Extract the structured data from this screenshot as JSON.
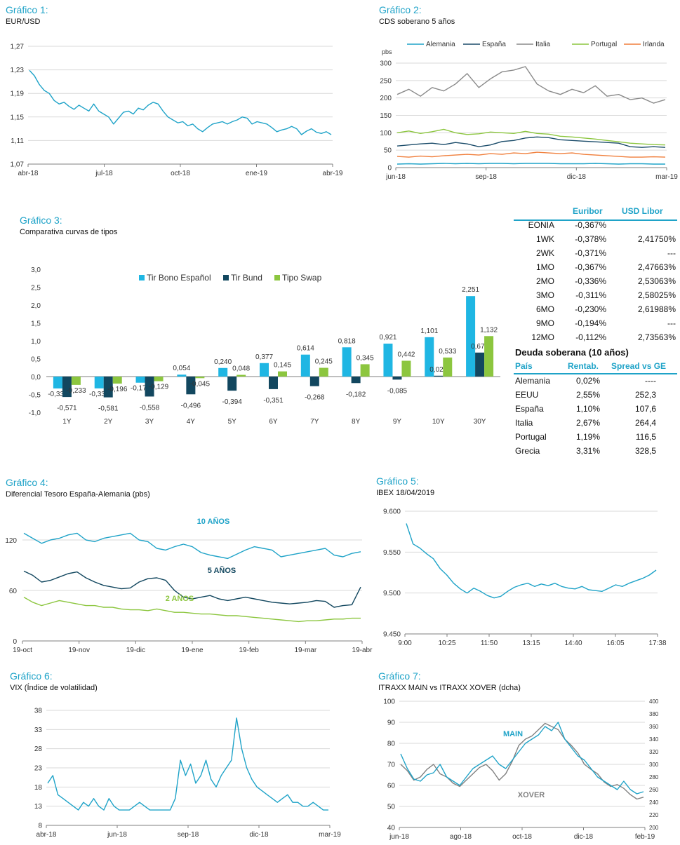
{
  "g1": {
    "title": "Gráfico 1:",
    "subtitle": "EUR/USD",
    "chart_data": {
      "type": "line",
      "yticks": [
        "1,27",
        "1,23",
        "1,19",
        "1,15",
        "1,11",
        "1,07"
      ],
      "xticks": [
        "abr-18",
        "jul-18",
        "oct-18",
        "ene-19",
        "abr-19"
      ],
      "ylim": [
        1.07,
        1.27
      ],
      "series": [
        {
          "color": "#1fa3c8",
          "values": [
            1.229,
            1.22,
            1.205,
            1.195,
            1.19,
            1.178,
            1.172,
            1.175,
            1.168,
            1.163,
            1.17,
            1.165,
            1.16,
            1.172,
            1.16,
            1.155,
            1.15,
            1.138,
            1.148,
            1.158,
            1.16,
            1.155,
            1.165,
            1.162,
            1.17,
            1.175,
            1.172,
            1.16,
            1.15,
            1.145,
            1.14,
            1.142,
            1.135,
            1.138,
            1.13,
            1.125,
            1.132,
            1.138,
            1.14,
            1.142,
            1.138,
            1.142,
            1.145,
            1.15,
            1.148,
            1.138,
            1.142,
            1.14,
            1.138,
            1.132,
            1.125,
            1.128,
            1.13,
            1.134,
            1.13,
            1.12,
            1.126,
            1.13,
            1.124,
            1.122,
            1.125,
            1.12
          ]
        }
      ]
    }
  },
  "g2": {
    "title": "Gráfico 2:",
    "subtitle": "CDS soberano 5 años",
    "unit": "pbs",
    "chart_data": {
      "type": "line",
      "yticks": [
        "300",
        "250",
        "200",
        "150",
        "100",
        "50",
        "0"
      ],
      "xticks": [
        "jun-18",
        "sep-18",
        "dic-18",
        "mar-19"
      ],
      "ylim": [
        0,
        300
      ],
      "series": [
        {
          "name": "Alemania",
          "color": "#1fa3c8",
          "values": [
            10,
            11,
            10,
            11,
            12,
            11,
            12,
            11,
            12,
            12,
            11,
            12,
            12,
            12,
            11,
            11,
            11,
            12,
            11,
            10,
            11,
            11,
            10,
            10
          ]
        },
        {
          "name": "España",
          "color": "#1b4c6a",
          "values": [
            62,
            65,
            68,
            70,
            66,
            72,
            68,
            60,
            65,
            75,
            78,
            85,
            88,
            86,
            80,
            78,
            76,
            74,
            72,
            70,
            60,
            58,
            60,
            58
          ]
        },
        {
          "name": "Italia",
          "color": "#8a8a8a",
          "values": [
            210,
            225,
            205,
            230,
            220,
            240,
            270,
            230,
            255,
            275,
            280,
            290,
            240,
            220,
            210,
            225,
            215,
            235,
            205,
            210,
            195,
            200,
            185,
            195
          ]
        },
        {
          "name": "Portugal",
          "color": "#8cc63f",
          "values": [
            100,
            105,
            98,
            103,
            110,
            100,
            95,
            97,
            102,
            100,
            98,
            104,
            98,
            96,
            90,
            88,
            85,
            82,
            78,
            74,
            70,
            68,
            66,
            65
          ]
        },
        {
          "name": "Irlanda",
          "color": "#f07f3c",
          "values": [
            32,
            30,
            33,
            31,
            34,
            36,
            38,
            36,
            40,
            38,
            42,
            40,
            44,
            42,
            40,
            42,
            38,
            36,
            34,
            32,
            30,
            30,
            31,
            30
          ]
        }
      ]
    }
  },
  "g3": {
    "title": "Gráfico 3:",
    "subtitle": "Comparativa curvas de tipos",
    "chart_data": {
      "type": "bar",
      "categories": [
        "1Y",
        "2Y",
        "3Y",
        "4Y",
        "5Y",
        "6Y",
        "7Y",
        "8Y",
        "9Y",
        "10Y",
        "30Y"
      ],
      "yticks": [
        "3,0",
        "2,5",
        "2,0",
        "1,5",
        "1,0",
        "0,5",
        "0,0",
        "-0,5",
        "-1,0"
      ],
      "ylim": [
        -1.0,
        3.0
      ],
      "series": [
        {
          "name": "Tir Bono Español",
          "color": "#1fb6e3",
          "values": [
            -0.332,
            -0.33,
            -0.171,
            0.054,
            0.24,
            0.377,
            0.614,
            0.818,
            0.921,
            1.101,
            2.251
          ],
          "labels": [
            "-0,332",
            "-0,330",
            "-0,171",
            "0,054",
            "0,240",
            "0,377",
            "0,614",
            "0,818",
            "0,921",
            "1,101",
            "2,251"
          ]
        },
        {
          "name": "Tir Bund",
          "color": "#12475f",
          "values": [
            -0.571,
            -0.581,
            -0.558,
            -0.496,
            -0.394,
            -0.351,
            -0.268,
            -0.182,
            -0.085,
            0.024,
            0.671
          ],
          "labels": [
            "-0,571",
            "-0,581",
            "-0,558",
            "-0,496",
            "-0,394",
            "-0,351",
            "-0,268",
            "-0,182",
            "-0,085",
            "0,024",
            "0,671"
          ]
        },
        {
          "name": "Tipo Swap",
          "color": "#8cc63f",
          "values": [
            -0.233,
            -0.196,
            -0.129,
            -0.045,
            0.048,
            0.145,
            0.245,
            0.345,
            0.442,
            0.533,
            1.132
          ],
          "labels": [
            "-0,233",
            "-0,196",
            "-0,129",
            "-0,045",
            "0,048",
            "0,145",
            "0,245",
            "0,345",
            "0,442",
            "0,533",
            "1,132"
          ]
        }
      ]
    }
  },
  "rates": {
    "col1": "Euribor",
    "col2": "USD Libor",
    "rows": [
      {
        "label": "EONIA",
        "a": "-0,367%",
        "b": ""
      },
      {
        "label": "1WK",
        "a": "-0,378%",
        "b": "2,41750%"
      },
      {
        "label": "2WK",
        "a": "-0,371%",
        "b": "---"
      },
      {
        "label": "1MO",
        "a": "-0,367%",
        "b": "2,47663%"
      },
      {
        "label": "2MO",
        "a": "-0,336%",
        "b": "2,53063%"
      },
      {
        "label": "3MO",
        "a": "-0,311%",
        "b": "2,58025%"
      },
      {
        "label": "6MO",
        "a": "-0,230%",
        "b": "2,61988%"
      },
      {
        "label": "9MO",
        "a": "-0,194%",
        "b": "---"
      },
      {
        "label": "12MO",
        "a": "-0,112%",
        "b": "2,73563%"
      }
    ],
    "debt_title": "Deuda soberana (10 años)",
    "debt_cols": [
      "País",
      "Rentab.",
      "Spread vs GE"
    ],
    "debt_rows": [
      {
        "c": "Alemania",
        "r": "0,02%",
        "s": "----"
      },
      {
        "c": "EEUU",
        "r": "2,55%",
        "s": "252,3"
      },
      {
        "c": "España",
        "r": "1,10%",
        "s": "107,6"
      },
      {
        "c": "Italia",
        "r": "2,67%",
        "s": "264,4"
      },
      {
        "c": "Portugal",
        "r": "1,19%",
        "s": "116,5"
      },
      {
        "c": "Grecia",
        "r": "3,31%",
        "s": "328,5"
      }
    ]
  },
  "g4": {
    "title": "Gráfico 4:",
    "subtitle": "Diferencial Tesoro España-Alemania (pbs)",
    "chart_data": {
      "type": "line",
      "yticks": [
        "120",
        "60",
        "0"
      ],
      "xticks": [
        "19-oct",
        "19-nov",
        "19-dic",
        "19-ene",
        "19-feb",
        "19-mar",
        "19-abr"
      ],
      "ylim": [
        0,
        145
      ],
      "series": [
        {
          "name": "10 AÑOS",
          "color": "#1fa3c8",
          "values": [
            128,
            122,
            116,
            120,
            122,
            126,
            128,
            120,
            118,
            122,
            124,
            126,
            128,
            120,
            118,
            110,
            108,
            112,
            115,
            112,
            105,
            102,
            100,
            98,
            103,
            108,
            112,
            110,
            108,
            100,
            102,
            104,
            106,
            108,
            110,
            102,
            100,
            104,
            106
          ]
        },
        {
          "name": "5 AÑOS",
          "color": "#12475f",
          "values": [
            83,
            78,
            70,
            72,
            76,
            80,
            82,
            75,
            70,
            66,
            64,
            62,
            63,
            70,
            74,
            75,
            72,
            60,
            52,
            50,
            52,
            54,
            50,
            48,
            50,
            52,
            50,
            48,
            46,
            45,
            44,
            45,
            46,
            48,
            47,
            40,
            42,
            43,
            64
          ]
        },
        {
          "name": "2 AÑOS",
          "color": "#8cc63f",
          "values": [
            52,
            46,
            42,
            45,
            48,
            46,
            44,
            42,
            42,
            40,
            40,
            38,
            37,
            37,
            36,
            38,
            36,
            34,
            34,
            33,
            32,
            32,
            31,
            30,
            30,
            29,
            28,
            27,
            26,
            25,
            24,
            23,
            24,
            24,
            25,
            26,
            26,
            27,
            27
          ]
        }
      ]
    }
  },
  "g5": {
    "title": "Gráfico 5:",
    "subtitle": "IBEX  18/04/2019",
    "chart_data": {
      "type": "line",
      "yticks": [
        "9.600",
        "9.550",
        "9.500",
        "9.450"
      ],
      "xticks": [
        "9:00",
        "10:25",
        "11:50",
        "13:15",
        "14:40",
        "16:05",
        "17:38"
      ],
      "ylim": [
        9450,
        9600
      ],
      "series": [
        {
          "color": "#1fa3c8",
          "values": [
            9585,
            9560,
            9555,
            9548,
            9542,
            9530,
            9522,
            9512,
            9505,
            9500,
            9506,
            9502,
            9497,
            9494,
            9496,
            9502,
            9507,
            9510,
            9512,
            9508,
            9511,
            9509,
            9512,
            9508,
            9506,
            9505,
            9508,
            9504,
            9503,
            9502,
            9506,
            9510,
            9508,
            9512,
            9515,
            9518,
            9522,
            9528
          ]
        }
      ]
    }
  },
  "g6": {
    "title": "Gráfico 6:",
    "subtitle": "VIX (Índice de volatilidad)",
    "chart_data": {
      "type": "line",
      "yticks": [
        "38",
        "33",
        "28",
        "23",
        "18",
        "13",
        "8"
      ],
      "xticks": [
        "abr-18",
        "jun-18",
        "sep-18",
        "dic-18",
        "mar-19"
      ],
      "ylim": [
        8,
        38
      ],
      "series": [
        {
          "color": "#1fa3c8",
          "values": [
            19,
            21,
            16,
            15,
            14,
            13,
            12,
            14,
            13,
            15,
            13,
            12,
            15,
            13,
            12,
            12,
            12,
            13,
            14,
            13,
            12,
            12,
            12,
            12,
            12,
            15,
            25,
            21,
            24,
            19,
            21,
            25,
            20,
            18,
            21,
            23,
            25,
            36,
            28,
            23,
            20,
            18,
            17,
            16,
            15,
            14,
            15,
            16,
            14,
            14,
            13,
            13,
            14,
            13,
            12,
            12
          ]
        }
      ]
    }
  },
  "g7": {
    "title": "Gráfico 7:",
    "subtitle": "ITRAXX MAIN vs ITRAXX XOVER (dcha)",
    "chart_data": {
      "type": "line",
      "yticks_left": [
        "100",
        "90",
        "80",
        "70",
        "60",
        "50",
        "40"
      ],
      "yticks_right": [
        "400",
        "380",
        "360",
        "340",
        "320",
        "300",
        "280",
        "260",
        "240",
        "220",
        "200"
      ],
      "xticks": [
        "jun-18",
        "ago-18",
        "oct-18",
        "dic-18",
        "feb-19"
      ],
      "ylim_left": [
        40,
        100
      ],
      "ylim_right": [
        200,
        400
      ],
      "series": [
        {
          "name": "MAIN",
          "color": "#1fa3c8",
          "axis": "left",
          "values": [
            75,
            68,
            63,
            62,
            65,
            66,
            70,
            64,
            62,
            60,
            64,
            68,
            70,
            72,
            74,
            70,
            68,
            72,
            76,
            80,
            82,
            84,
            88,
            86,
            90,
            82,
            78,
            74,
            72,
            68,
            64,
            62,
            60,
            58,
            62,
            58,
            56,
            57
          ]
        },
        {
          "name": "XOVER",
          "color": "#808080",
          "axis": "right",
          "values": [
            300,
            290,
            275,
            280,
            292,
            300,
            285,
            280,
            270,
            265,
            275,
            285,
            295,
            300,
            290,
            275,
            285,
            305,
            330,
            340,
            345,
            355,
            365,
            360,
            355,
            340,
            330,
            318,
            300,
            292,
            285,
            272,
            265,
            268,
            262,
            252,
            245,
            248
          ]
        }
      ],
      "annotations": [
        "MAIN",
        "XOVER"
      ]
    }
  }
}
